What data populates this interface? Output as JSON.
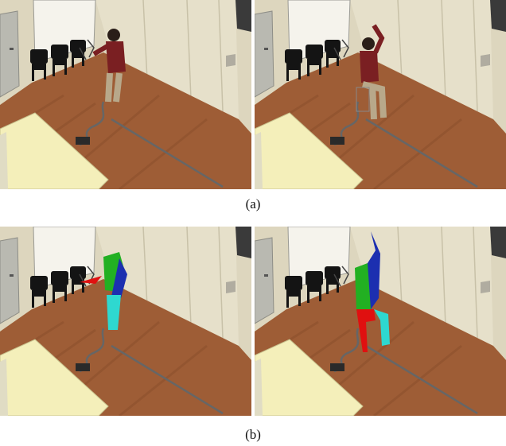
{
  "figure": {
    "rows": [
      {
        "caption": "(a)"
      },
      {
        "caption": "(b)"
      }
    ]
  }
}
